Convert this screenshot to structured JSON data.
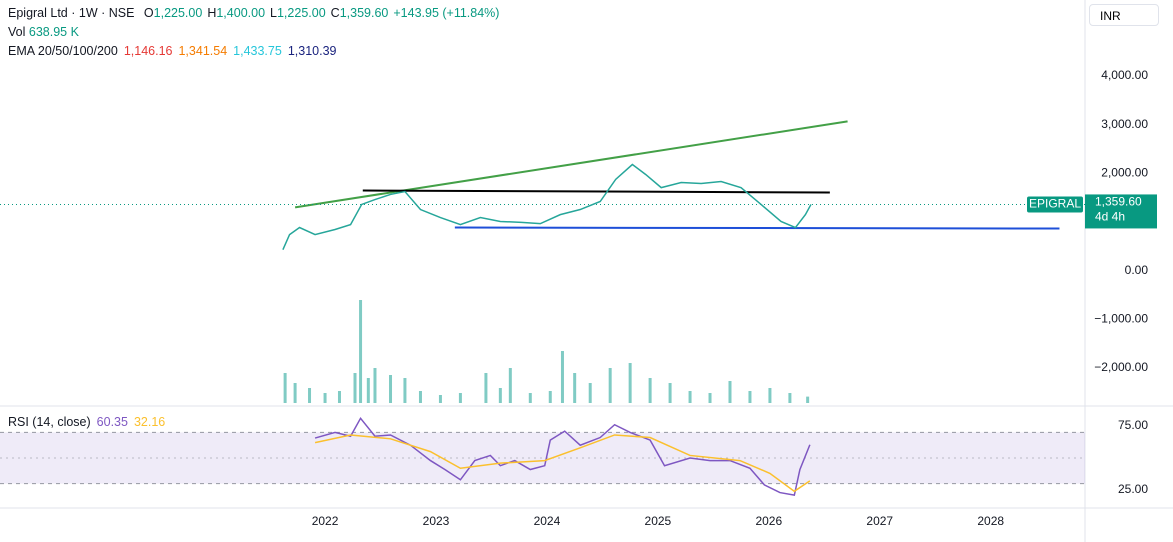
{
  "header": {
    "symbol": "Epigral Ltd · 1W · NSE",
    "o_key": "O",
    "o": "1,225.00",
    "h_key": "H",
    "h": "1,400.00",
    "l_key": "L",
    "l": "1,225.00",
    "c_key": "C",
    "c": "1,359.60",
    "change": "+143.95 (+11.84%)",
    "vol_key": "Vol",
    "vol": "638.95 K",
    "ema_key": "EMA 20/50/100/200",
    "ema": [
      {
        "text": "1,146.16",
        "color": "#e53935"
      },
      {
        "text": "1,341.54",
        "color": "#f57c00"
      },
      {
        "text": "1,433.75",
        "color": "#26c6da"
      },
      {
        "text": "1,310.39",
        "color": "#1a237e"
      }
    ],
    "rsi_key": "RSI (14, close)",
    "rsi_values": [
      {
        "text": "60.35",
        "color": "#7e57c2"
      },
      {
        "text": "32.16",
        "color": "#fbc02d"
      }
    ],
    "currency": "INR",
    "symbol_tag": "EPIGRAL",
    "countdown": "4d 4h"
  },
  "chart_data": [
    {
      "type": "line",
      "xlim": [
        2019.07,
        2028.85
      ],
      "xticks": [
        2022,
        2023,
        2024,
        2025,
        2026,
        2027,
        2028
      ],
      "ylim": [
        -2720,
        5560
      ],
      "yticks": [
        {
          "value": -2000,
          "label": "−2,000.00"
        },
        {
          "value": -1000,
          "label": "−1,000.00"
        },
        {
          "value": 0,
          "label": "0.00"
        },
        {
          "value": 2000,
          "label": "2,000.00"
        },
        {
          "value": 3000,
          "label": "3,000.00"
        },
        {
          "value": 4000,
          "label": "4,000.00"
        }
      ],
      "last_price": {
        "value": 1359.6,
        "label": "1,359.60"
      },
      "series": [
        {
          "name": "Close",
          "color": "#26a69a",
          "x": [
            2021.62,
            2021.68,
            2021.77,
            2021.91,
            2022.09,
            2022.23,
            2022.33,
            2022.45,
            2022.59,
            2022.72,
            2022.86,
            2023.04,
            2023.22,
            2023.4,
            2023.58,
            2023.77,
            2023.94,
            2024.12,
            2024.3,
            2024.48,
            2024.62,
            2024.77,
            2024.89,
            2025.03,
            2025.21,
            2025.39,
            2025.57,
            2025.75,
            2025.93,
            2026.11,
            2026.24,
            2026.33,
            2026.38
          ],
          "values": [
            430,
            740,
            885,
            740,
            845,
            945,
            1360,
            1460,
            1565,
            1625,
            1255,
            1090,
            945,
            1090,
            1010,
            990,
            965,
            1150,
            1255,
            1420,
            1875,
            2180,
            1975,
            1705,
            1810,
            1790,
            1830,
            1705,
            1360,
            1010,
            885,
            1150,
            1359.6
          ]
        }
      ],
      "trendlines": [
        {
          "color": "#43a047",
          "x": [
            2021.73,
            2026.71
          ],
          "y": [
            1300,
            3066
          ]
        },
        {
          "color": "#000000",
          "x": [
            2022.34,
            2026.55
          ],
          "y": [
            1646,
            1605
          ]
        },
        {
          "color": "#1e4fd8",
          "x": [
            2023.17,
            2028.62
          ],
          "y": [
            885,
            865
          ]
        }
      ]
    },
    {
      "type": "bar",
      "xlim": [
        2019.07,
        2028.85
      ],
      "ylim": [
        0,
        12000
      ],
      "series": [
        {
          "name": "Vol",
          "color": "#80cbc4",
          "x": [
            2021.64,
            2021.73,
            2021.86,
            2022.0,
            2022.13,
            2022.27,
            2022.32,
            2022.39,
            2022.45,
            2022.59,
            2022.72,
            2022.86,
            2023.04,
            2023.22,
            2023.45,
            2023.58,
            2023.67,
            2023.85,
            2024.03,
            2024.14,
            2024.25,
            2024.39,
            2024.57,
            2024.75,
            2024.93,
            2025.11,
            2025.29,
            2025.47,
            2025.65,
            2025.83,
            2026.01,
            2026.19,
            2026.35
          ],
          "values": [
            3000,
            2000,
            1500,
            1000,
            1200,
            3000,
            10300,
            2500,
            3500,
            2800,
            2500,
            1200,
            800,
            1000,
            3000,
            1500,
            3500,
            1000,
            1200,
            5200,
            3000,
            2000,
            3500,
            4000,
            2500,
            2000,
            1200,
            1000,
            2200,
            1200,
            1500,
            1000,
            638.95
          ]
        }
      ]
    },
    {
      "type": "line",
      "xlim": [
        2019.07,
        2028.85
      ],
      "ylim": [
        13.3,
        87.5
      ],
      "yticks": [
        {
          "value": 25,
          "label": "25.00"
        },
        {
          "value": 75,
          "label": "75.00"
        }
      ],
      "band": [
        30,
        70
      ],
      "midline": 50,
      "series": [
        {
          "name": "RSI",
          "color": "#7e57c2",
          "x": [
            2021.91,
            2022.09,
            2022.23,
            2022.32,
            2022.45,
            2022.59,
            2022.77,
            2022.95,
            2023.08,
            2023.22,
            2023.35,
            2023.49,
            2023.58,
            2023.71,
            2023.85,
            2023.98,
            2024.03,
            2024.16,
            2024.3,
            2024.48,
            2024.61,
            2024.75,
            2024.93,
            2025.06,
            2025.29,
            2025.47,
            2025.65,
            2025.83,
            2025.96,
            2026.1,
            2026.23,
            2026.28,
            2026.37
          ],
          "values": [
            65.6,
            70,
            67,
            81,
            67,
            68,
            60,
            48,
            41,
            33,
            48,
            52,
            44,
            48,
            41,
            44,
            64,
            71,
            60,
            66,
            76,
            70,
            64,
            44,
            50,
            48,
            48,
            42,
            29,
            23,
            21,
            41,
            60.35
          ]
        },
        {
          "name": "RSI MA",
          "color": "#fbc02d",
          "x": [
            2021.91,
            2022.23,
            2022.59,
            2022.95,
            2023.22,
            2023.58,
            2023.98,
            2024.3,
            2024.61,
            2024.93,
            2025.29,
            2025.74,
            2026.01,
            2026.23,
            2026.37
          ],
          "values": [
            62,
            68,
            65,
            55,
            42,
            46,
            48,
            58,
            68,
            66,
            52,
            48,
            38,
            24,
            32.16
          ]
        }
      ]
    }
  ]
}
